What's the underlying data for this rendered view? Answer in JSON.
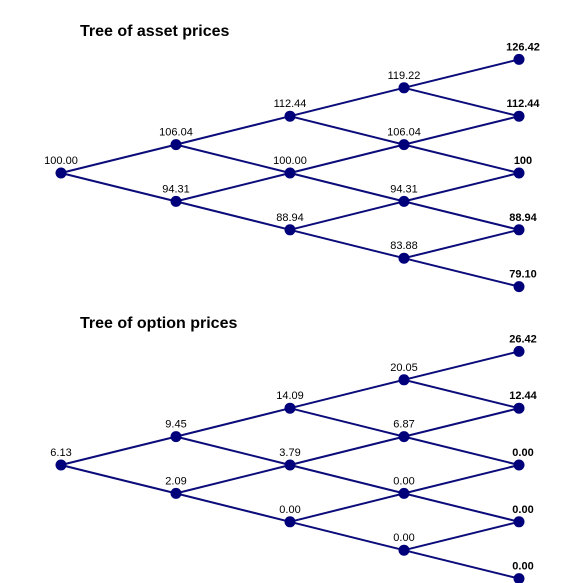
{
  "colors": {
    "edge": "#0b0b7a",
    "node": "#00007a",
    "text": "#000000",
    "background": "#ffffff"
  },
  "trees": [
    {
      "id": "asset",
      "title": "Tree of asset prices",
      "steps": [
        [
          "100.00"
        ],
        [
          "106.04",
          "94.31"
        ],
        [
          "112.44",
          "100.00",
          "88.94"
        ],
        [
          "119.22",
          "106.04",
          "94.31",
          "83.88"
        ],
        [
          "126.42",
          "112.44",
          "100",
          "88.94",
          "79.10"
        ]
      ]
    },
    {
      "id": "option",
      "title": "Tree of option prices",
      "steps": [
        [
          "6.13"
        ],
        [
          "9.45",
          "2.09"
        ],
        [
          "14.09",
          "3.79",
          "0.00"
        ],
        [
          "20.05",
          "6.87",
          "0.00",
          "0.00"
        ],
        [
          "26.42",
          "12.44",
          "0.00",
          "0.00",
          "0.00"
        ]
      ]
    }
  ]
}
